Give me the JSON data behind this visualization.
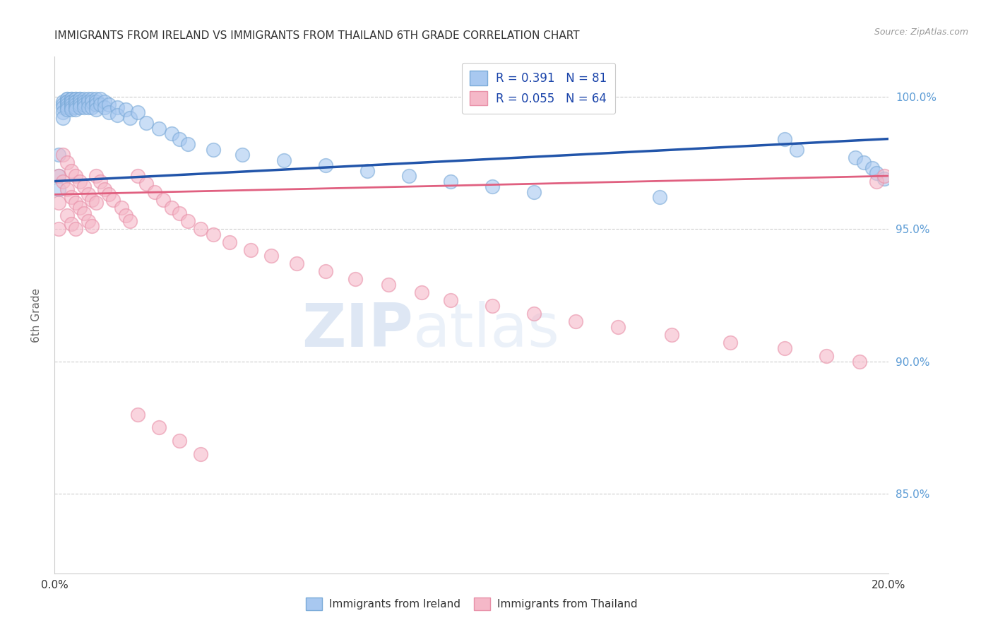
{
  "title": "IMMIGRANTS FROM IRELAND VS IMMIGRANTS FROM THAILAND 6TH GRADE CORRELATION CHART",
  "source": "Source: ZipAtlas.com",
  "ylabel": "6th Grade",
  "xmin": 0.0,
  "xmax": 0.2,
  "ymin": 0.82,
  "ymax": 1.015,
  "yticks": [
    0.85,
    0.9,
    0.95,
    1.0
  ],
  "ytick_labels": [
    "85.0%",
    "90.0%",
    "95.0%",
    "100.0%"
  ],
  "ireland_color": "#A8C8F0",
  "thailand_color": "#F5B8C8",
  "ireland_edge_color": "#7AAAD8",
  "thailand_edge_color": "#E890A8",
  "ireland_line_color": "#2255AA",
  "thailand_line_color": "#E06080",
  "background_color": "#FFFFFF",
  "grid_color": "#CCCCCC",
  "title_color": "#333333",
  "axis_label_color": "#666666",
  "right_axis_color": "#5B9BD5",
  "watermark_zip": "ZIP",
  "watermark_atlas": "atlas",
  "ireland_x": [
    0.001,
    0.001,
    0.001,
    0.002,
    0.002,
    0.002,
    0.002,
    0.002,
    0.003,
    0.003,
    0.003,
    0.003,
    0.003,
    0.003,
    0.003,
    0.004,
    0.004,
    0.004,
    0.004,
    0.004,
    0.004,
    0.004,
    0.005,
    0.005,
    0.005,
    0.005,
    0.005,
    0.005,
    0.005,
    0.006,
    0.006,
    0.006,
    0.006,
    0.006,
    0.007,
    0.007,
    0.007,
    0.007,
    0.008,
    0.008,
    0.008,
    0.009,
    0.009,
    0.009,
    0.01,
    0.01,
    0.01,
    0.01,
    0.011,
    0.011,
    0.012,
    0.012,
    0.013,
    0.013,
    0.015,
    0.015,
    0.017,
    0.018,
    0.02,
    0.022,
    0.025,
    0.028,
    0.03,
    0.032,
    0.038,
    0.045,
    0.055,
    0.065,
    0.075,
    0.085,
    0.095,
    0.105,
    0.115,
    0.145,
    0.175,
    0.178,
    0.192,
    0.194,
    0.196,
    0.197,
    0.199
  ],
  "ireland_y": [
    0.978,
    0.97,
    0.965,
    0.998,
    0.997,
    0.996,
    0.994,
    0.992,
    0.999,
    0.999,
    0.998,
    0.998,
    0.997,
    0.996,
    0.995,
    0.999,
    0.999,
    0.998,
    0.998,
    0.997,
    0.996,
    0.995,
    0.999,
    0.999,
    0.998,
    0.998,
    0.997,
    0.996,
    0.995,
    0.999,
    0.999,
    0.998,
    0.997,
    0.996,
    0.999,
    0.998,
    0.997,
    0.996,
    0.999,
    0.998,
    0.996,
    0.999,
    0.998,
    0.996,
    0.999,
    0.998,
    0.997,
    0.995,
    0.999,
    0.997,
    0.998,
    0.996,
    0.997,
    0.994,
    0.996,
    0.993,
    0.995,
    0.992,
    0.994,
    0.99,
    0.988,
    0.986,
    0.984,
    0.982,
    0.98,
    0.978,
    0.976,
    0.974,
    0.972,
    0.97,
    0.968,
    0.966,
    0.964,
    0.962,
    0.984,
    0.98,
    0.977,
    0.975,
    0.973,
    0.971,
    0.969
  ],
  "thailand_x": [
    0.001,
    0.001,
    0.001,
    0.002,
    0.002,
    0.003,
    0.003,
    0.003,
    0.004,
    0.004,
    0.004,
    0.005,
    0.005,
    0.005,
    0.006,
    0.006,
    0.007,
    0.007,
    0.008,
    0.008,
    0.009,
    0.009,
    0.01,
    0.01,
    0.011,
    0.012,
    0.013,
    0.014,
    0.016,
    0.017,
    0.018,
    0.02,
    0.022,
    0.024,
    0.026,
    0.028,
    0.03,
    0.032,
    0.035,
    0.038,
    0.042,
    0.047,
    0.052,
    0.058,
    0.065,
    0.072,
    0.08,
    0.088,
    0.095,
    0.105,
    0.115,
    0.125,
    0.135,
    0.148,
    0.162,
    0.175,
    0.185,
    0.193,
    0.197,
    0.199,
    0.02,
    0.025,
    0.03,
    0.035
  ],
  "thailand_y": [
    0.97,
    0.96,
    0.95,
    0.978,
    0.968,
    0.975,
    0.965,
    0.955,
    0.972,
    0.962,
    0.952,
    0.97,
    0.96,
    0.95,
    0.968,
    0.958,
    0.966,
    0.956,
    0.963,
    0.953,
    0.961,
    0.951,
    0.97,
    0.96,
    0.968,
    0.965,
    0.963,
    0.961,
    0.958,
    0.955,
    0.953,
    0.97,
    0.967,
    0.964,
    0.961,
    0.958,
    0.956,
    0.953,
    0.95,
    0.948,
    0.945,
    0.942,
    0.94,
    0.937,
    0.934,
    0.931,
    0.929,
    0.926,
    0.923,
    0.921,
    0.918,
    0.915,
    0.913,
    0.91,
    0.907,
    0.905,
    0.902,
    0.9,
    0.968,
    0.97,
    0.88,
    0.875,
    0.87,
    0.865
  ]
}
